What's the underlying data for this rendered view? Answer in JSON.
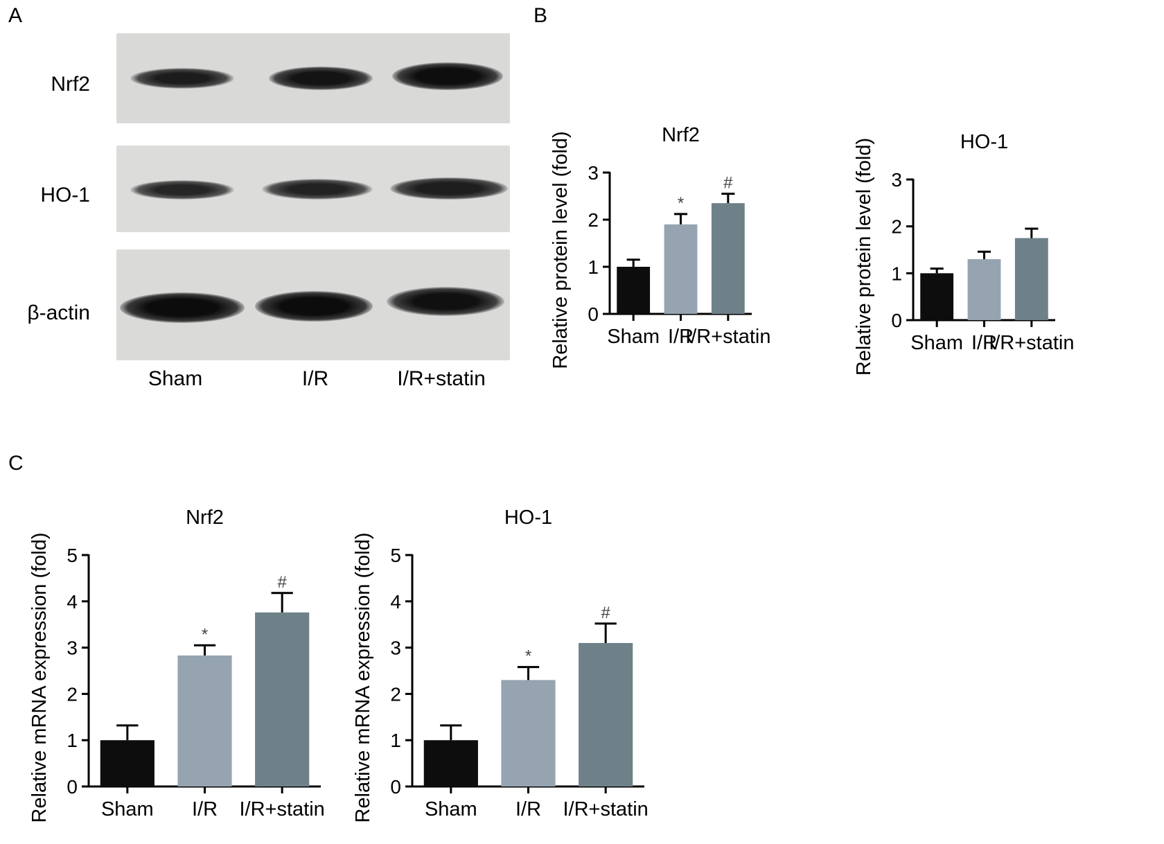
{
  "panel_labels": [
    "A",
    "B",
    "C"
  ],
  "western_blot": {
    "proteins": [
      "Nrf2",
      "HO-1",
      "β-actin"
    ],
    "lanes": [
      "Sham",
      "I/R",
      "I/R+statin"
    ]
  },
  "colors": {
    "Sham": "#0d0d0d",
    "I/R": "#95a4b0",
    "I/R+statin": "#6e8188"
  },
  "chart_data": [
    {
      "type": "bar",
      "panel": "B",
      "title": "Nrf2",
      "ylabel": "Relative protein level (fold)",
      "categories": [
        "Sham",
        "I/R",
        "I/R+statin"
      ],
      "values": [
        1.0,
        1.9,
        2.35
      ],
      "errors": [
        0.15,
        0.22,
        0.2
      ],
      "annotations": [
        "",
        "*",
        "#"
      ],
      "ylim": [
        0,
        3
      ],
      "yticks": [
        0,
        1,
        2,
        3
      ]
    },
    {
      "type": "bar",
      "panel": "B",
      "title": "HO-1",
      "ylabel": "Relative protein level (fold)",
      "categories": [
        "Sham",
        "I/R",
        "I/R+statin"
      ],
      "values": [
        1.0,
        1.3,
        1.75
      ],
      "errors": [
        0.1,
        0.16,
        0.2
      ],
      "annotations": [
        "",
        "",
        ""
      ],
      "ylim": [
        0,
        3
      ],
      "yticks": [
        0,
        1,
        2,
        3
      ]
    },
    {
      "type": "bar",
      "panel": "C",
      "title": "Nrf2",
      "ylabel": "Relative mRNA expression (fold)",
      "categories": [
        "Sham",
        "I/R",
        "I/R+statin"
      ],
      "values": [
        1.0,
        2.83,
        3.76
      ],
      "errors": [
        0.32,
        0.22,
        0.42
      ],
      "annotations": [
        "",
        "*",
        "#"
      ],
      "ylim": [
        0,
        5
      ],
      "yticks": [
        0,
        1,
        2,
        3,
        4,
        5
      ]
    },
    {
      "type": "bar",
      "panel": "C",
      "title": "HO-1",
      "ylabel": "Relative mRNA expression (fold)",
      "categories": [
        "Sham",
        "I/R",
        "I/R+statin"
      ],
      "values": [
        1.0,
        2.3,
        3.1
      ],
      "errors": [
        0.32,
        0.28,
        0.42
      ],
      "annotations": [
        "",
        "*",
        "#"
      ],
      "ylim": [
        0,
        5
      ],
      "yticks": [
        0,
        1,
        2,
        3,
        4,
        5
      ]
    }
  ]
}
